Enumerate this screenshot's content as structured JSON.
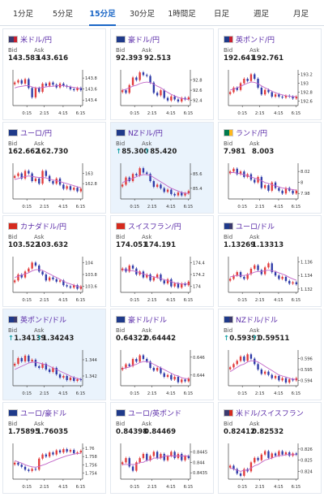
{
  "tabs": [
    {
      "label": "1分足",
      "active": false
    },
    {
      "label": "5分足",
      "active": false
    },
    {
      "label": "15分足",
      "active": true
    },
    {
      "label": "30分足",
      "active": false
    },
    {
      "label": "1時間足",
      "active": false
    },
    {
      "label": "日足",
      "active": false
    },
    {
      "label": "週足",
      "active": false
    },
    {
      "label": "月足",
      "active": false
    }
  ],
  "labels": {
    "bid": "Bid",
    "ask": "Ask",
    "up_arrow": "↑"
  },
  "colors": {
    "bull": "#e23b3b",
    "bear": "#2f3ba8",
    "ma": "#c266c8",
    "axis": "#444444"
  },
  "cards": [
    {
      "name": "米ドル/円",
      "flags": [
        "#3c3b6e",
        "#c8202f"
      ],
      "bid": "143.583",
      "ask": "143.616",
      "up": false,
      "highlight": false,
      "chart_data": {
        "type": "candlestick",
        "x_ticks": [
          "0:15",
          "2:15",
          "4:15",
          "6:15"
        ],
        "y_ticks": [
          "143.8",
          "143.6",
          "143.4"
        ],
        "ylim": [
          143.3,
          143.95
        ],
        "close": [
          143.72,
          143.76,
          143.7,
          143.78,
          143.62,
          143.45,
          143.62,
          143.55,
          143.7,
          143.66,
          143.72,
          143.68,
          143.63,
          143.7,
          143.66,
          143.64,
          143.6,
          143.58,
          143.62,
          143.58
        ],
        "ma": [
          143.62,
          143.64,
          143.65,
          143.66,
          143.66,
          143.64,
          143.62,
          143.62,
          143.63,
          143.64,
          143.65,
          143.65,
          143.66,
          143.66,
          143.66,
          143.65,
          143.64,
          143.63,
          143.62,
          143.61
        ]
      }
    },
    {
      "name": "豪ドル/円",
      "flags": [
        "#1f3a8a",
        "#1f3a8a"
      ],
      "bid": "92.393",
      "ask": "92.513",
      "up": false,
      "highlight": false,
      "chart_data": {
        "type": "candlestick",
        "x_ticks": [
          "0:15",
          "2:15",
          "4:15",
          "6:15"
        ],
        "y_ticks": [
          "92.8",
          "92.6",
          "92.4"
        ],
        "ylim": [
          92.3,
          93.0
        ],
        "close": [
          92.6,
          92.55,
          92.7,
          92.85,
          92.8,
          92.95,
          92.9,
          92.88,
          92.75,
          92.55,
          92.5,
          92.6,
          92.45,
          92.4,
          92.48,
          92.42,
          92.38,
          92.45,
          92.42,
          92.46
        ],
        "ma": [
          92.6,
          92.62,
          92.65,
          92.68,
          92.7,
          92.73,
          92.75,
          92.76,
          92.75,
          92.72,
          92.68,
          92.65,
          92.6,
          92.56,
          92.52,
          92.49,
          92.46,
          92.44,
          92.43,
          92.42
        ]
      }
    },
    {
      "name": "英ポンド/円",
      "flags": [
        "#1f3a8a",
        "#c8202f"
      ],
      "bid": "192.641",
      "ask": "192.761",
      "up": false,
      "highlight": false,
      "chart_data": {
        "type": "candlestick",
        "x_ticks": [
          "0:15",
          "2:15",
          "4:15",
          "6:15"
        ],
        "y_ticks": [
          "193.2",
          "193",
          "192.8",
          "192.6"
        ],
        "ylim": [
          192.5,
          193.3
        ],
        "close": [
          192.8,
          192.9,
          192.85,
          193.0,
          193.1,
          193.05,
          193.2,
          193.1,
          192.9,
          192.75,
          192.85,
          192.8,
          192.7,
          192.75,
          192.7,
          192.68,
          192.72,
          192.7,
          192.66,
          192.7
        ],
        "ma": [
          192.85,
          192.87,
          192.9,
          192.93,
          192.97,
          193.0,
          193.03,
          193.02,
          192.99,
          192.94,
          192.9,
          192.86,
          192.82,
          192.79,
          192.76,
          192.74,
          192.72,
          192.71,
          192.7,
          192.7
        ]
      }
    },
    {
      "name": "ユーロ/円",
      "flags": [
        "#1f3a8a",
        "#1f3a8a"
      ],
      "bid": "162.662",
      "ask": "162.730",
      "up": false,
      "highlight": false,
      "chart_data": {
        "type": "candlestick",
        "x_ticks": [
          "0:15",
          "2:15",
          "4:15",
          "6:15"
        ],
        "y_ticks": [
          "163",
          "162.8"
        ],
        "ylim": [
          162.5,
          163.2
        ],
        "close": [
          162.95,
          163.0,
          162.9,
          163.05,
          163.0,
          162.85,
          162.9,
          162.8,
          163.05,
          162.95,
          162.85,
          162.8,
          162.9,
          162.78,
          162.7,
          162.75,
          162.68,
          162.72,
          162.65,
          162.7
        ],
        "ma": [
          162.88,
          162.9,
          162.92,
          162.94,
          162.95,
          162.94,
          162.93,
          162.92,
          162.92,
          162.91,
          162.89,
          162.87,
          162.86,
          162.84,
          162.82,
          162.8,
          162.78,
          162.76,
          162.74,
          162.72
        ]
      }
    },
    {
      "name": "NZドル/円",
      "flags": [
        "#1f3a8a",
        "#1f3a8a"
      ],
      "bid": "85.300",
      "ask": "85.420",
      "up": true,
      "highlight": true,
      "chart_data": {
        "type": "candlestick",
        "x_ticks": [
          "0:15",
          "2:15",
          "4:15",
          "6:15"
        ],
        "y_ticks": [
          "85.6",
          "85.4"
        ],
        "ylim": [
          85.25,
          85.75
        ],
        "close": [
          85.45,
          85.55,
          85.5,
          85.6,
          85.58,
          85.68,
          85.62,
          85.6,
          85.5,
          85.42,
          85.45,
          85.4,
          85.35,
          85.38,
          85.32,
          85.3,
          85.34,
          85.3,
          85.33,
          85.36
        ],
        "ma": [
          85.48,
          85.5,
          85.52,
          85.54,
          85.56,
          85.58,
          85.59,
          85.59,
          85.58,
          85.55,
          85.52,
          85.49,
          85.46,
          85.43,
          85.4,
          85.38,
          85.36,
          85.34,
          85.33,
          85.33
        ]
      }
    },
    {
      "name": "ランド/円",
      "flags": [
        "#007a4d",
        "#ffb81c"
      ],
      "bid": "7.981",
      "ask": "8.003",
      "up": false,
      "highlight": false,
      "chart_data": {
        "type": "candlestick",
        "x_ticks": [
          "0:15",
          "2:15",
          "4:15",
          "6:15"
        ],
        "y_ticks": [
          "8.02",
          "8",
          "7.98"
        ],
        "ylim": [
          7.97,
          8.035
        ],
        "close": [
          8.02,
          8.025,
          8.015,
          8.02,
          8.01,
          8.015,
          8.005,
          8.0,
          8.01,
          7.99,
          7.995,
          7.985,
          8.0,
          7.99,
          7.985,
          7.98,
          7.99,
          7.985,
          7.98,
          7.985
        ],
        "ma": [
          8.018,
          8.018,
          8.017,
          8.016,
          8.014,
          8.012,
          8.01,
          8.008,
          8.006,
          8.003,
          8.0,
          7.998,
          7.996,
          7.994,
          7.992,
          7.99,
          7.989,
          7.988,
          7.987,
          7.986
        ]
      }
    },
    {
      "name": "カナダドル/円",
      "flags": [
        "#d52b1e",
        "#d52b1e"
      ],
      "bid": "103.522",
      "ask": "103.632",
      "up": false,
      "highlight": false,
      "chart_data": {
        "type": "candlestick",
        "x_ticks": [
          "0:15",
          "2:15",
          "4:15",
          "6:15"
        ],
        "y_ticks": [
          "104",
          "103.8",
          "103.6"
        ],
        "ylim": [
          103.5,
          104.1
        ],
        "close": [
          103.7,
          103.8,
          103.75,
          103.85,
          103.9,
          104.0,
          103.95,
          103.85,
          103.8,
          103.7,
          103.75,
          103.72,
          103.68,
          103.7,
          103.62,
          103.6,
          103.58,
          103.62,
          103.56,
          103.6
        ],
        "ma": [
          103.75,
          103.77,
          103.79,
          103.81,
          103.83,
          103.86,
          103.88,
          103.88,
          103.87,
          103.84,
          103.81,
          103.78,
          103.75,
          103.72,
          103.69,
          103.66,
          103.64,
          103.62,
          103.6,
          103.59
        ]
      }
    },
    {
      "name": "スイスフラン/円",
      "flags": [
        "#d52b1e",
        "#d52b1e"
      ],
      "bid": "174.051",
      "ask": "174.191",
      "up": false,
      "highlight": false,
      "chart_data": {
        "type": "candlestick",
        "x_ticks": [
          "0:15",
          "2:15",
          "4:15",
          "6:15"
        ],
        "y_ticks": [
          "174.4",
          "174.2",
          "174"
        ],
        "ylim": [
          173.9,
          174.5
        ],
        "close": [
          174.3,
          174.25,
          174.35,
          174.3,
          174.2,
          174.25,
          174.15,
          174.2,
          174.1,
          174.15,
          174.2,
          174.1,
          174.05,
          174.12,
          174.0,
          174.05,
          173.98,
          174.05,
          174.02,
          174.08
        ],
        "ma": [
          174.28,
          174.28,
          174.27,
          174.26,
          174.25,
          174.23,
          174.21,
          174.19,
          174.17,
          174.16,
          174.15,
          174.13,
          174.11,
          174.1,
          174.08,
          174.06,
          174.05,
          174.04,
          174.04,
          174.04
        ]
      }
    },
    {
      "name": "ユーロ/ドル",
      "flags": [
        "#1f3a8a",
        "#3c3b6e"
      ],
      "bid": "1.13269",
      "ask": "1.13313",
      "up": false,
      "highlight": false,
      "chart_data": {
        "type": "candlestick",
        "x_ticks": [
          "0:15",
          "2:15",
          "4:15",
          "6:15"
        ],
        "y_ticks": [
          "1.136",
          "1.134",
          "1.132"
        ],
        "ylim": [
          1.1315,
          1.1368
        ],
        "close": [
          1.1335,
          1.134,
          1.1345,
          1.1338,
          1.1335,
          1.1342,
          1.135,
          1.1355,
          1.1348,
          1.1342,
          1.1352,
          1.1358,
          1.1345,
          1.134,
          1.1335,
          1.1338,
          1.1332,
          1.1328,
          1.133,
          1.1327
        ],
        "ma": [
          1.1338,
          1.1339,
          1.134,
          1.134,
          1.134,
          1.1341,
          1.1343,
          1.1345,
          1.1346,
          1.1346,
          1.1347,
          1.1348,
          1.1347,
          1.1346,
          1.1344,
          1.1342,
          1.134,
          1.1337,
          1.1335,
          1.1333
        ]
      }
    },
    {
      "name": "英ポンド/ドル",
      "flags": [
        "#1f3a8a",
        "#3c3b6e"
      ],
      "bid": "1.34139",
      "ask": "1.34243",
      "up": true,
      "highlight": true,
      "chart_data": {
        "type": "candlestick",
        "x_ticks": [
          "0:15",
          "2:15",
          "4:15",
          "6:15"
        ],
        "y_ticks": [
          "1.344",
          "1.342"
        ],
        "ylim": [
          1.3408,
          1.3452
        ],
        "close": [
          1.3435,
          1.3442,
          1.3438,
          1.3445,
          1.3438,
          1.344,
          1.3432,
          1.343,
          1.3435,
          1.3428,
          1.3425,
          1.343,
          1.3422,
          1.3418,
          1.342,
          1.3415,
          1.3418,
          1.3414,
          1.3416,
          1.3415
        ],
        "ma": [
          1.3428,
          1.343,
          1.3432,
          1.3434,
          1.3436,
          1.3437,
          1.3437,
          1.3436,
          1.3435,
          1.3434,
          1.3432,
          1.343,
          1.3428,
          1.3426,
          1.3424,
          1.3422,
          1.342,
          1.3418,
          1.3417,
          1.3416
        ]
      }
    },
    {
      "name": "豪ドル/ドル",
      "flags": [
        "#1f3a8a",
        "#1f3a8a"
      ],
      "bid": "0.64322",
      "ask": "0.64442",
      "up": false,
      "highlight": false,
      "chart_data": {
        "type": "candlestick",
        "x_ticks": [
          "0:15",
          "2:15",
          "4:15",
          "6:15"
        ],
        "y_ticks": [
          "0.646",
          "0.644"
        ],
        "ylim": [
          0.6428,
          0.6468
        ],
        "close": [
          0.6448,
          0.6452,
          0.645,
          0.6458,
          0.6455,
          0.6462,
          0.6458,
          0.6455,
          0.6448,
          0.6445,
          0.6448,
          0.6442,
          0.6438,
          0.644,
          0.6435,
          0.6438,
          0.6432,
          0.6435,
          0.6433,
          0.6436
        ],
        "ma": [
          0.6447,
          0.6448,
          0.6449,
          0.6451,
          0.6452,
          0.6454,
          0.6455,
          0.6455,
          0.6454,
          0.6452,
          0.645,
          0.6448,
          0.6446,
          0.6444,
          0.6442,
          0.644,
          0.6439,
          0.6437,
          0.6436,
          0.6436
        ]
      }
    },
    {
      "name": "NZドル/ドル",
      "flags": [
        "#1f3a8a",
        "#3c3b6e"
      ],
      "bid": "0.59391",
      "ask": "0.59511",
      "up": true,
      "highlight": false,
      "chart_data": {
        "type": "candlestick",
        "x_ticks": [
          "0:15",
          "2:15",
          "4:15",
          "6:15"
        ],
        "y_ticks": [
          "0.596",
          "0.595",
          "0.594"
        ],
        "ylim": [
          0.5935,
          0.5968
        ],
        "close": [
          0.5952,
          0.5955,
          0.5958,
          0.5962,
          0.5958,
          0.5964,
          0.596,
          0.5955,
          0.595,
          0.5946,
          0.5948,
          0.5945,
          0.5942,
          0.5944,
          0.594,
          0.5942,
          0.5938,
          0.5941,
          0.594,
          0.5942
        ],
        "ma": [
          0.5948,
          0.595,
          0.5952,
          0.5954,
          0.5955,
          0.5957,
          0.5958,
          0.5958,
          0.5957,
          0.5955,
          0.5953,
          0.5951,
          0.5949,
          0.5947,
          0.5945,
          0.5944,
          0.5943,
          0.5942,
          0.5941,
          0.5941
        ]
      }
    },
    {
      "name": "ユーロ/豪ドル",
      "flags": [
        "#1f3a8a",
        "#1f3a8a"
      ],
      "bid": "1.75895",
      "ask": "1.76035",
      "up": false,
      "highlight": false,
      "chart_data": {
        "type": "candlestick",
        "x_ticks": [
          "0:15",
          "2:15",
          "4:15",
          "6:15"
        ],
        "y_ticks": [
          "1.76",
          "1.758",
          "1.756",
          "1.754"
        ],
        "ylim": [
          1.7525,
          1.7612
        ],
        "close": [
          1.7565,
          1.756,
          1.7555,
          1.7548,
          1.7545,
          1.755,
          1.7548,
          1.7575,
          1.7585,
          1.758,
          1.759,
          1.7585,
          1.7595,
          1.759,
          1.7598,
          1.7592,
          1.7596,
          1.7588,
          1.759,
          1.7594
        ],
        "ma": [
          1.757,
          1.7567,
          1.7564,
          1.756,
          1.7557,
          1.7555,
          1.7554,
          1.7556,
          1.7559,
          1.7562,
          1.7566,
          1.7569,
          1.7573,
          1.7576,
          1.7579,
          1.7582,
          1.7584,
          1.7586,
          1.7587,
          1.7588
        ]
      }
    },
    {
      "name": "ユーロ/英ポンド",
      "flags": [
        "#1f3a8a",
        "#1f3a8a"
      ],
      "bid": "0.84398",
      "ask": "0.84469",
      "up": false,
      "highlight": false,
      "chart_data": {
        "type": "candlestick",
        "x_ticks": [
          "0:15",
          "2:15",
          "4:15",
          "6:15"
        ],
        "y_ticks": [
          "0.8445",
          "0.844",
          "0.8435"
        ],
        "ylim": [
          0.8432,
          0.8449
        ],
        "close": [
          0.844,
          0.8442,
          0.8438,
          0.8436,
          0.844,
          0.8442,
          0.8444,
          0.8441,
          0.8443,
          0.8445,
          0.8442,
          0.8444,
          0.8441,
          0.8443,
          0.8445,
          0.8442,
          0.8444,
          0.8441,
          0.8443,
          0.8442
        ],
        "ma": [
          0.8439,
          0.8439,
          0.8439,
          0.8439,
          0.8439,
          0.844,
          0.844,
          0.8441,
          0.8441,
          0.8442,
          0.8442,
          0.8442,
          0.8443,
          0.8443,
          0.8443,
          0.8443,
          0.8443,
          0.8443,
          0.8443,
          0.8443
        ]
      }
    },
    {
      "name": "米ドル/スイスフラン",
      "flags": [
        "#3c3b6e",
        "#d52b1e"
      ],
      "bid": "0.82412",
      "ask": "0.82532",
      "up": false,
      "highlight": false,
      "chart_data": {
        "type": "candlestick",
        "x_ticks": [
          "0:15",
          "2:15",
          "4:15",
          "6:15"
        ],
        "y_ticks": [
          "0.826",
          "0.825",
          "0.824"
        ],
        "ylim": [
          0.8233,
          0.8265
        ],
        "close": [
          0.8245,
          0.8242,
          0.8238,
          0.8236,
          0.8242,
          0.824,
          0.8248,
          0.8252,
          0.825,
          0.8255,
          0.8258,
          0.8252,
          0.8256,
          0.8254,
          0.8258,
          0.8255,
          0.8257,
          0.8254,
          0.8256,
          0.8255
        ],
        "ma": [
          0.8243,
          0.8242,
          0.8241,
          0.824,
          0.8241,
          0.8241,
          0.8243,
          0.8245,
          0.8246,
          0.8248,
          0.825,
          0.8251,
          0.8252,
          0.8253,
          0.8254,
          0.8254,
          0.8255,
          0.8255,
          0.8255,
          0.8255
        ]
      }
    }
  ]
}
